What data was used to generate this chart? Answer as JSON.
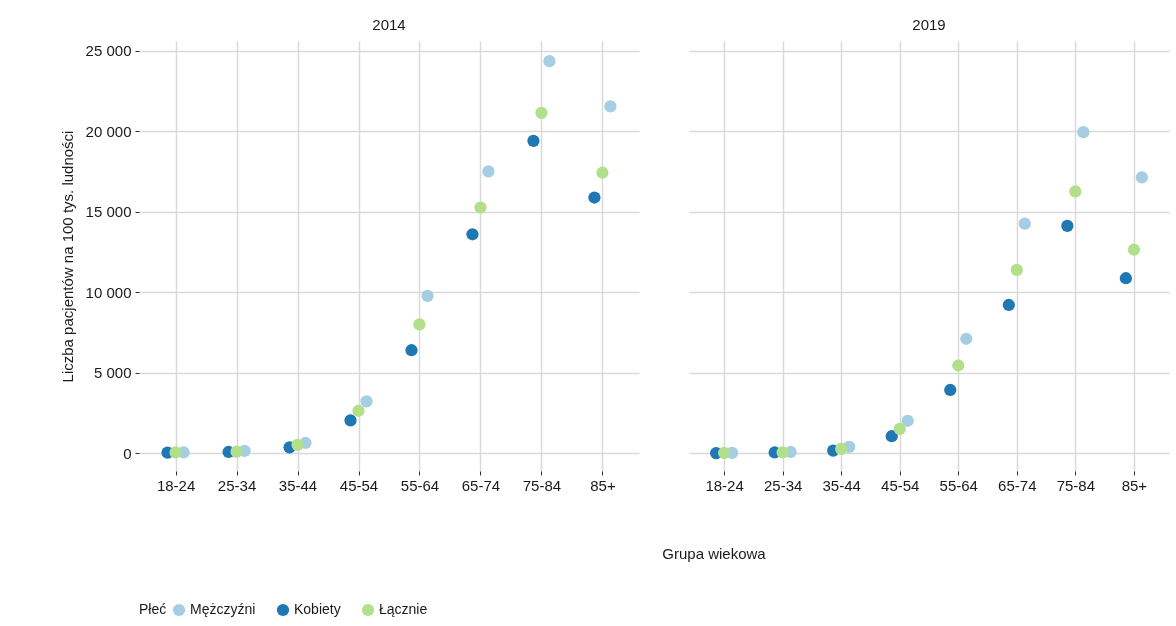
{
  "chart_data": [
    {
      "type": "scatter",
      "title": "2014",
      "xlabel": "Grupa wiekowa",
      "ylabel": "Liczba pacjentów na 100 tys. ludności",
      "legend_title": "Płeć",
      "legend": "bottom",
      "grid": true,
      "marker": "circle",
      "categories": [
        "18-24",
        "25-34",
        "35-44",
        "45-54",
        "55-64",
        "65-74",
        "75-84",
        "85+"
      ],
      "ylim": [
        -1100,
        25600
      ],
      "yticks": [
        {
          "value": 0,
          "label": "0"
        },
        {
          "value": 5000,
          "label": "5 000"
        },
        {
          "value": 10000,
          "label": "10 000"
        },
        {
          "value": 15000,
          "label": "15 000"
        },
        {
          "value": 20000,
          "label": "20 000"
        },
        {
          "value": 25000,
          "label": "25 000"
        }
      ],
      "series": [
        {
          "name": "Mężczyźni",
          "color": "#a6cee3",
          "values": [
            60,
            150,
            640,
            3220,
            9770,
            17500,
            24350,
            21540
          ]
        },
        {
          "name": "Kobiety",
          "color": "#1f78b4",
          "values": [
            40,
            80,
            370,
            2040,
            6400,
            13600,
            19400,
            15880
          ]
        },
        {
          "name": "Łącznie",
          "color": "#b2df8a",
          "values": [
            50,
            100,
            520,
            2640,
            8000,
            15260,
            21140,
            17420
          ]
        }
      ]
    },
    {
      "type": "scatter",
      "title": "2019",
      "grid": true,
      "marker": "circle",
      "tick_labels": "x",
      "categories": [
        "18-24",
        "25-34",
        "35-44",
        "45-54",
        "55-64",
        "65-74",
        "75-84",
        "85+"
      ],
      "ylim": [
        -1100,
        25600
      ],
      "yticks": [
        0,
        5000,
        10000,
        15000,
        20000,
        25000
      ],
      "series": [
        {
          "color": "#a6cee3",
          "values": [
            30,
            80,
            400,
            2020,
            7110,
            14260,
            19940,
            17130
          ]
        },
        {
          "color": "#1f78b4",
          "values": [
            10,
            50,
            170,
            1060,
            3930,
            9210,
            14120,
            10870
          ]
        },
        {
          "color": "#b2df8a",
          "values": [
            20,
            60,
            270,
            1520,
            5450,
            11390,
            16260,
            12640
          ]
        }
      ]
    }
  ]
}
